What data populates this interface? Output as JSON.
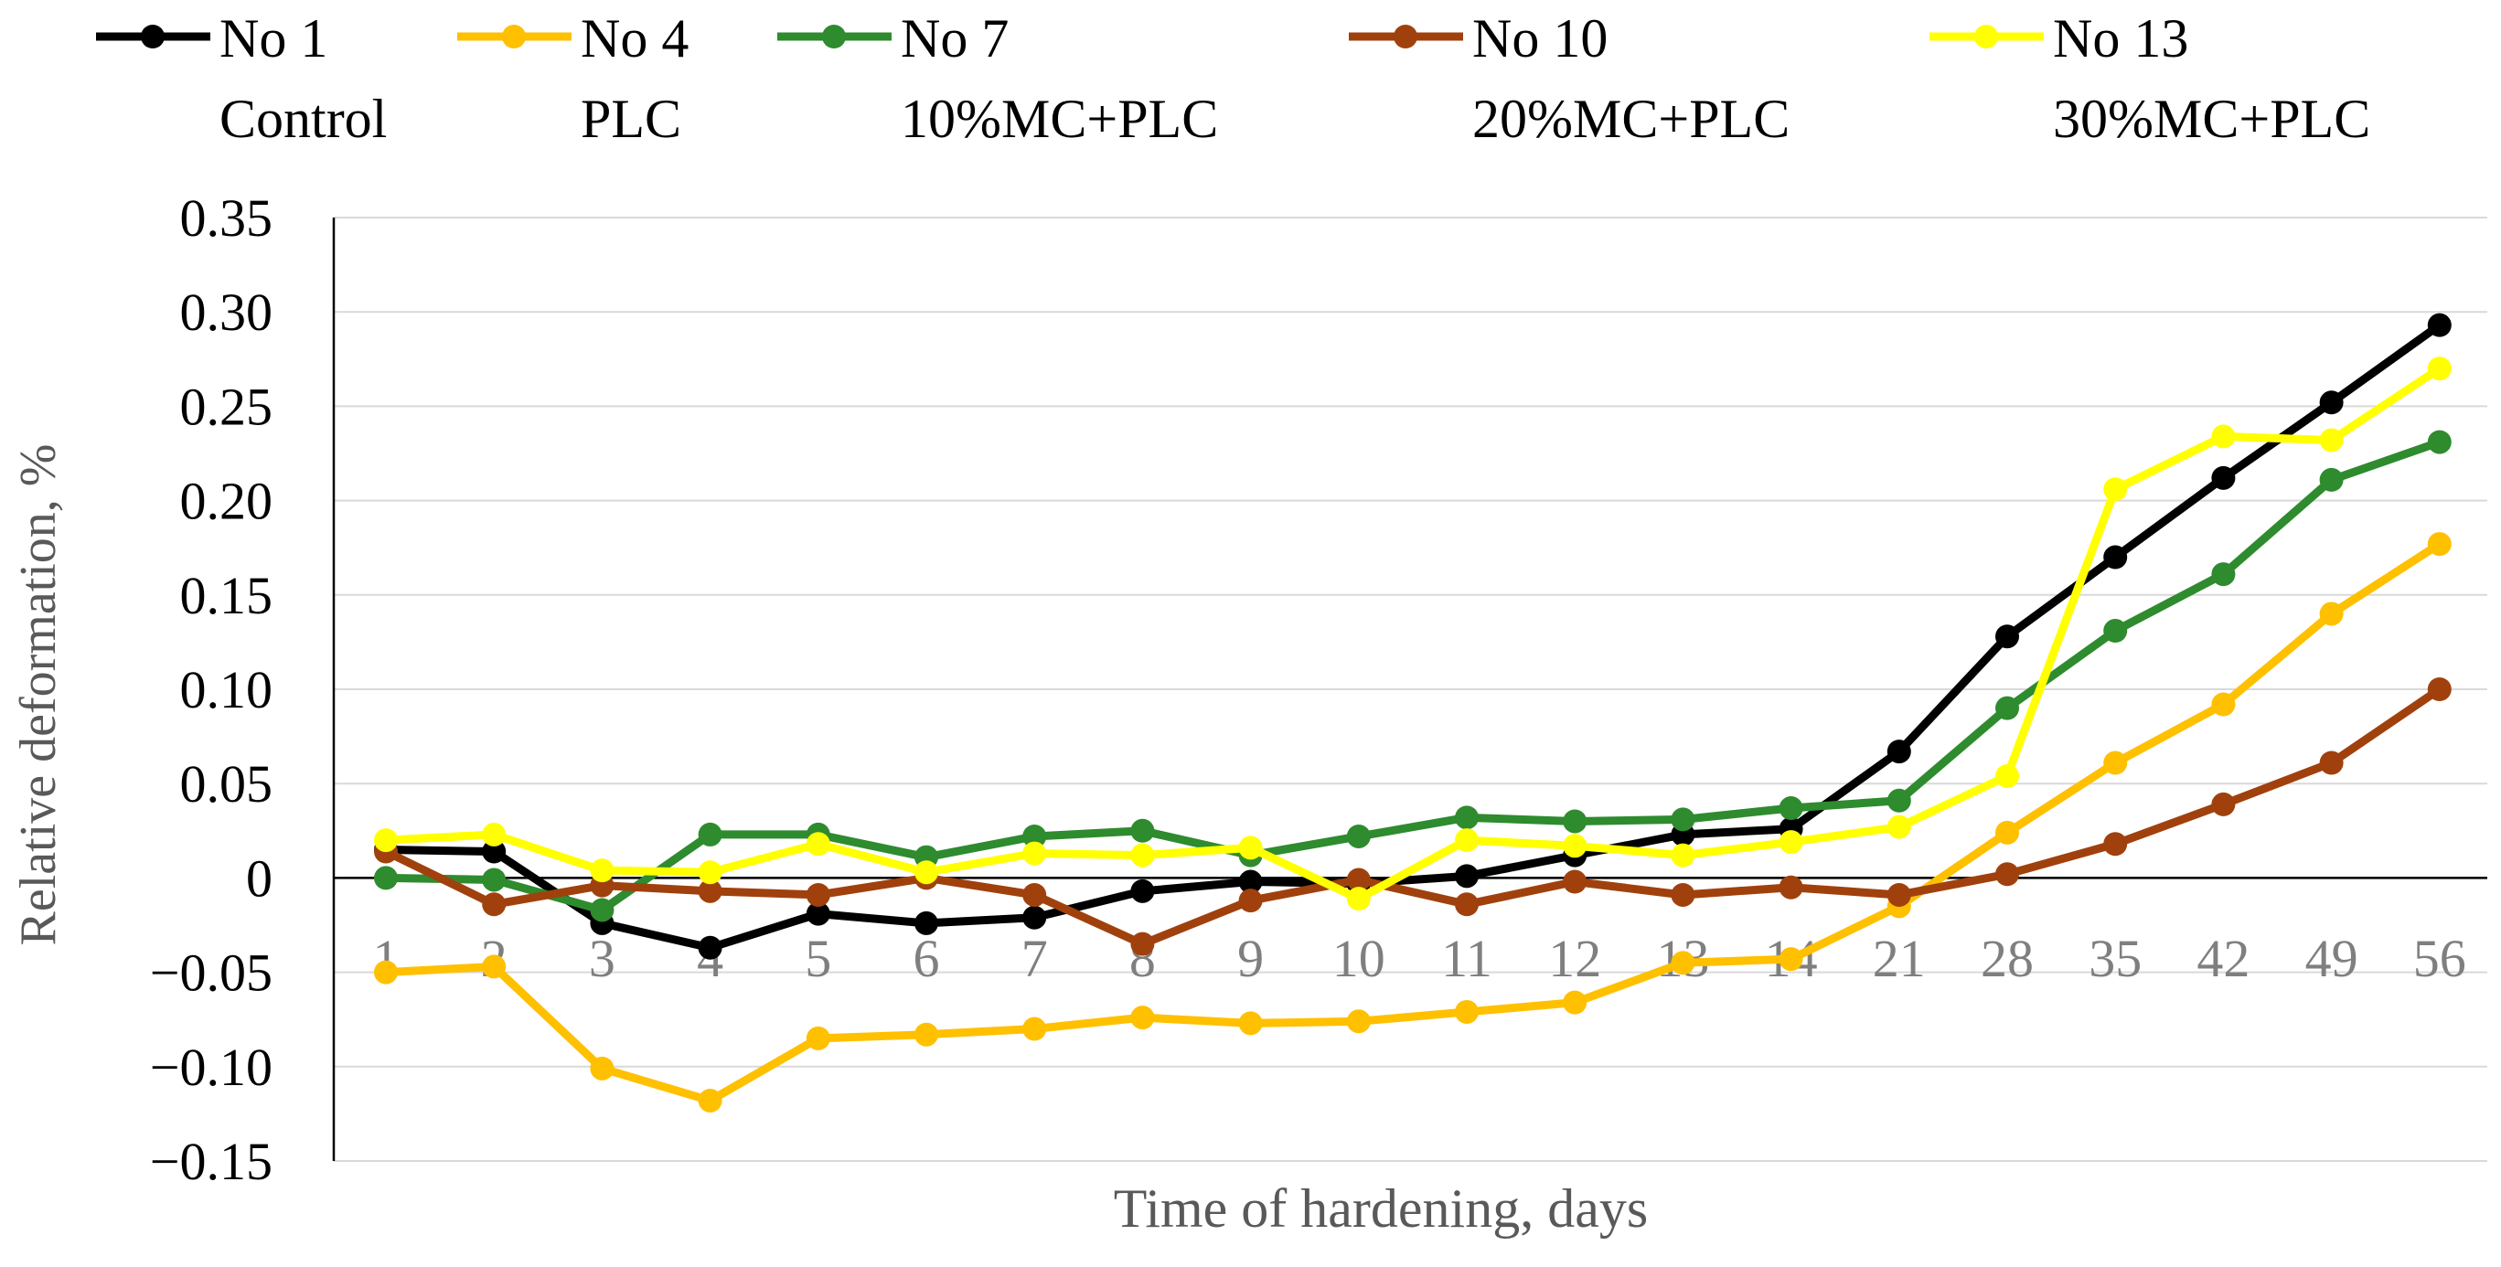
{
  "chart_data": {
    "type": "line",
    "title": "",
    "xlabel": "Time of hardening, days",
    "ylabel": "Relative deformation, %",
    "ylim": [
      -0.15,
      0.35
    ],
    "y_ticks": [
      {
        "value": 0.35,
        "label": "0.35"
      },
      {
        "value": 0.3,
        "label": "0.30"
      },
      {
        "value": 0.25,
        "label": "0.25"
      },
      {
        "value": 0.2,
        "label": "0.20"
      },
      {
        "value": 0.15,
        "label": "0.15"
      },
      {
        "value": 0.1,
        "label": "0.10"
      },
      {
        "value": 0.05,
        "label": "0.05"
      },
      {
        "value": 0.0,
        "label": "0"
      },
      {
        "value": -0.05,
        "label": "−0.05"
      },
      {
        "value": -0.1,
        "label": "−0.10"
      },
      {
        "value": -0.15,
        "label": "−0.15"
      }
    ],
    "categories": [
      "1",
      "2",
      "3",
      "4",
      "5",
      "6",
      "7",
      "8",
      "9",
      "10",
      "11",
      "12",
      "13",
      "14",
      "21",
      "28",
      "35",
      "42",
      "49",
      "56"
    ],
    "grid": true,
    "legend_position": "top",
    "series": [
      {
        "name": "No 1",
        "description": "Control",
        "color": "#000000",
        "values": [
          0.015,
          0.014,
          -0.024,
          -0.037,
          -0.019,
          -0.024,
          -0.021,
          -0.007,
          -0.002,
          -0.003,
          0.001,
          0.012,
          0.023,
          0.026,
          0.067,
          0.128,
          0.17,
          0.212,
          0.252,
          0.293
        ]
      },
      {
        "name": "No 4",
        "description": "PLC",
        "color": "#FFC000",
        "values": [
          -0.05,
          -0.047,
          -0.101,
          -0.118,
          -0.085,
          -0.083,
          -0.08,
          -0.074,
          -0.077,
          -0.076,
          -0.071,
          -0.066,
          -0.045,
          -0.043,
          -0.015,
          0.024,
          0.061,
          0.092,
          0.14,
          0.177
        ]
      },
      {
        "name": "No 7",
        "description": "10%MC+PLC",
        "color": "#2E8B2E",
        "values": [
          0.0,
          -0.001,
          -0.017,
          0.023,
          0.023,
          0.011,
          0.022,
          0.025,
          0.012,
          0.022,
          0.032,
          0.03,
          0.031,
          0.037,
          0.041,
          0.09,
          0.131,
          0.161,
          0.211,
          0.231
        ]
      },
      {
        "name": "No 10",
        "description": "20%MC+PLC",
        "color": "#A0410D",
        "values": [
          0.014,
          -0.014,
          -0.004,
          -0.007,
          -0.009,
          0.0,
          -0.009,
          -0.035,
          -0.012,
          -0.001,
          -0.014,
          -0.002,
          -0.009,
          -0.005,
          -0.009,
          0.002,
          0.018,
          0.039,
          0.061,
          0.1
        ]
      },
      {
        "name": "No 13",
        "description": "30%MC+PLC",
        "color": "#FFFF00",
        "values": [
          0.02,
          0.023,
          0.004,
          0.003,
          0.018,
          0.003,
          0.013,
          0.012,
          0.016,
          -0.011,
          0.02,
          0.017,
          0.012,
          0.019,
          0.027,
          0.054,
          0.206,
          0.234,
          0.232,
          0.27
        ]
      }
    ]
  }
}
